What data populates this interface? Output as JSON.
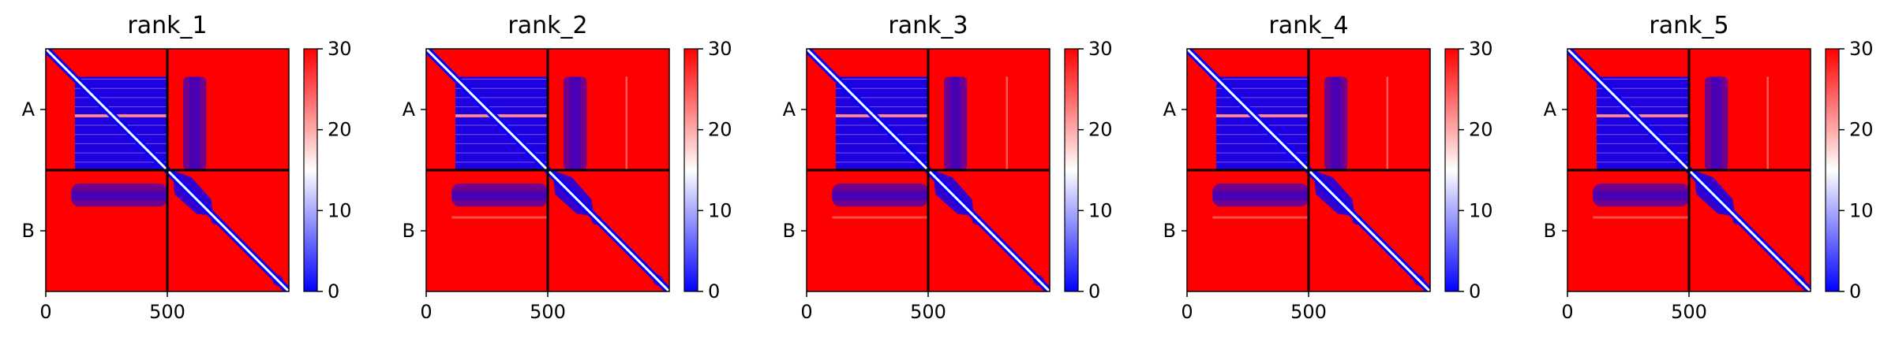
{
  "chart_data": {
    "type": "heatmap",
    "layout": "five panels side by side, each with its own colorbar to the right",
    "colormap": {
      "name": "bwr",
      "low_color": "#0000ff",
      "mid_color": "#ffffff",
      "high_color": "#ff0000"
    },
    "divider_color": "#000000",
    "chain_labels": [
      "A",
      "B"
    ],
    "chain_boundary": 500,
    "total_length": 1000,
    "x_ticks": [
      0,
      500
    ],
    "x_tick_labels": [
      "0",
      "500"
    ],
    "colorbar_range": [
      0,
      30
    ],
    "colorbar_ticks": [
      0,
      10,
      20,
      30
    ],
    "colorbar_tick_labels": [
      "0",
      "10",
      "20",
      "30"
    ],
    "panels": [
      {
        "title": "rank_1"
      },
      {
        "title": "rank_2"
      },
      {
        "title": "rank_3"
      },
      {
        "title": "rank_4"
      },
      {
        "title": "rank_5"
      }
    ]
  }
}
